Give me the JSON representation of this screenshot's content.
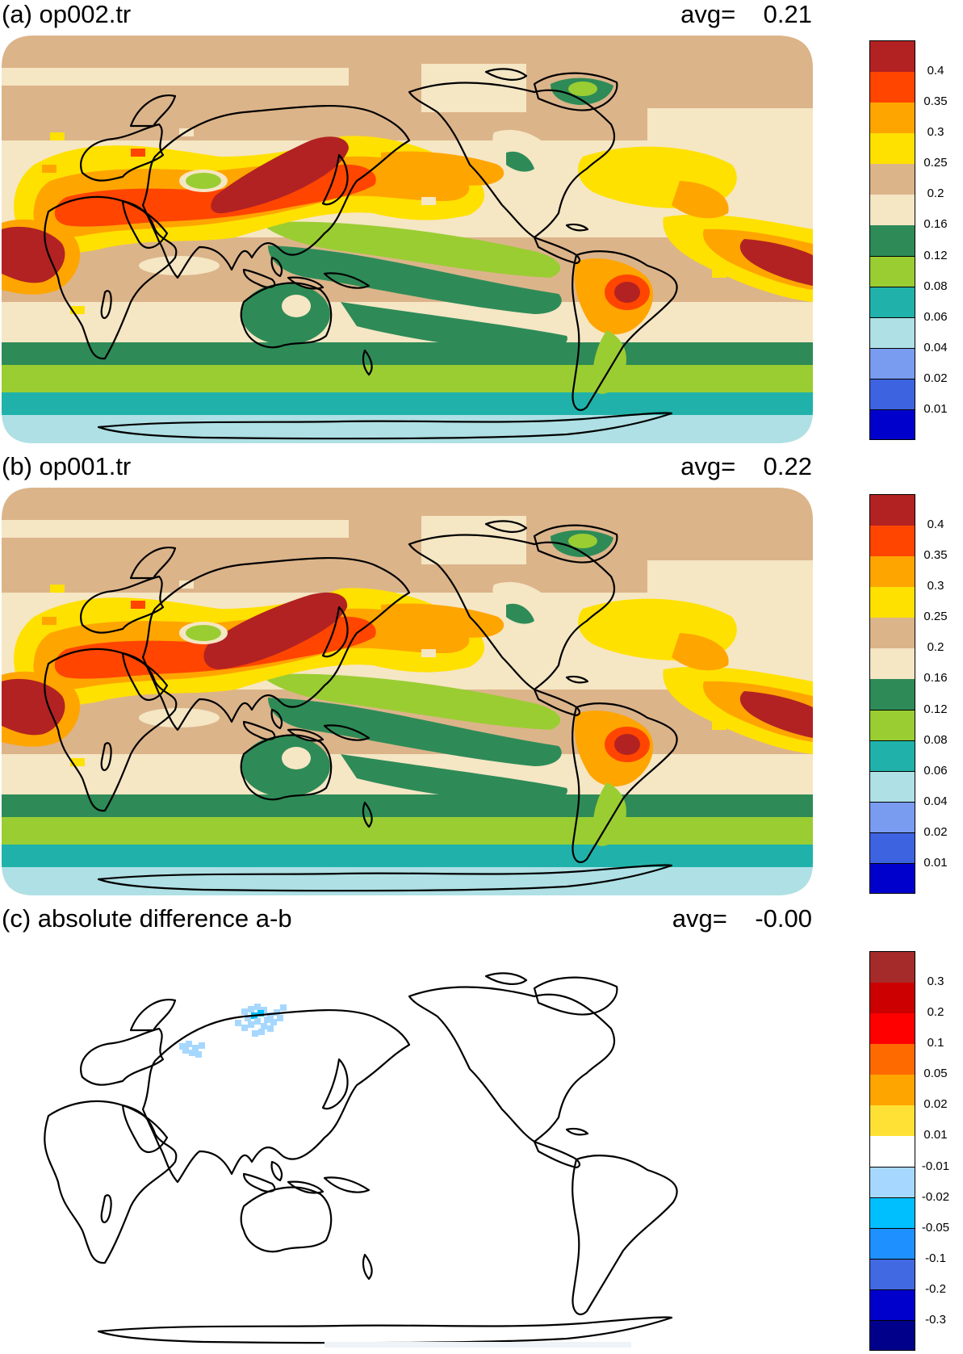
{
  "panels": [
    {
      "id": "a",
      "title": "(a) op002.tr",
      "avg_label": "avg=",
      "avg_value": "0.21",
      "colorbar": {
        "colors": [
          "#0000cd",
          "#3e63e0",
          "#7a9cf0",
          "#aee0e5",
          "#20b2aa",
          "#9acd32",
          "#2e8b57",
          "#f5e6c4",
          "#dcb48a",
          "#ffe100",
          "#ffa500",
          "#ff4500",
          "#b22222"
        ],
        "labels": [
          "0.01",
          "0.02",
          "0.04",
          "0.06",
          "0.08",
          "0.12",
          "0.16",
          "0.2",
          "0.25",
          "0.3",
          "0.35",
          "0.4"
        ]
      }
    },
    {
      "id": "b",
      "title": "(b) op001.tr",
      "avg_label": "avg=",
      "avg_value": "0.22",
      "colorbar": {
        "colors": [
          "#0000cd",
          "#3e63e0",
          "#7a9cf0",
          "#aee0e5",
          "#20b2aa",
          "#9acd32",
          "#2e8b57",
          "#f5e6c4",
          "#dcb48a",
          "#ffe100",
          "#ffa500",
          "#ff4500",
          "#b22222"
        ],
        "labels": [
          "0.01",
          "0.02",
          "0.04",
          "0.06",
          "0.08",
          "0.12",
          "0.16",
          "0.2",
          "0.25",
          "0.3",
          "0.35",
          "0.4"
        ]
      }
    },
    {
      "id": "c",
      "title": "(c) absolute difference a-b",
      "avg_label": "avg=",
      "avg_value": "-0.00",
      "colorbar": {
        "colors": [
          "#00008b",
          "#0000cd",
          "#4169e1",
          "#1e90ff",
          "#00bfff",
          "#a6d8ff",
          "#ffffff",
          "#ffe135",
          "#ffa500",
          "#ff6a00",
          "#ff0000",
          "#cc0000",
          "#a52a2a"
        ],
        "labels": [
          "-0.3",
          "-0.2",
          "-0.1",
          "-0.05",
          "-0.02",
          "-0.01",
          "0.01",
          "0.02",
          "0.05",
          "0.1",
          "0.2",
          "0.3"
        ]
      }
    }
  ],
  "map_colors": {
    "ocean_base": "#f5e6c4",
    "land_coast": "#000000",
    "diff_light": "#a6d8ff",
    "diff_mid": "#00bfff"
  }
}
